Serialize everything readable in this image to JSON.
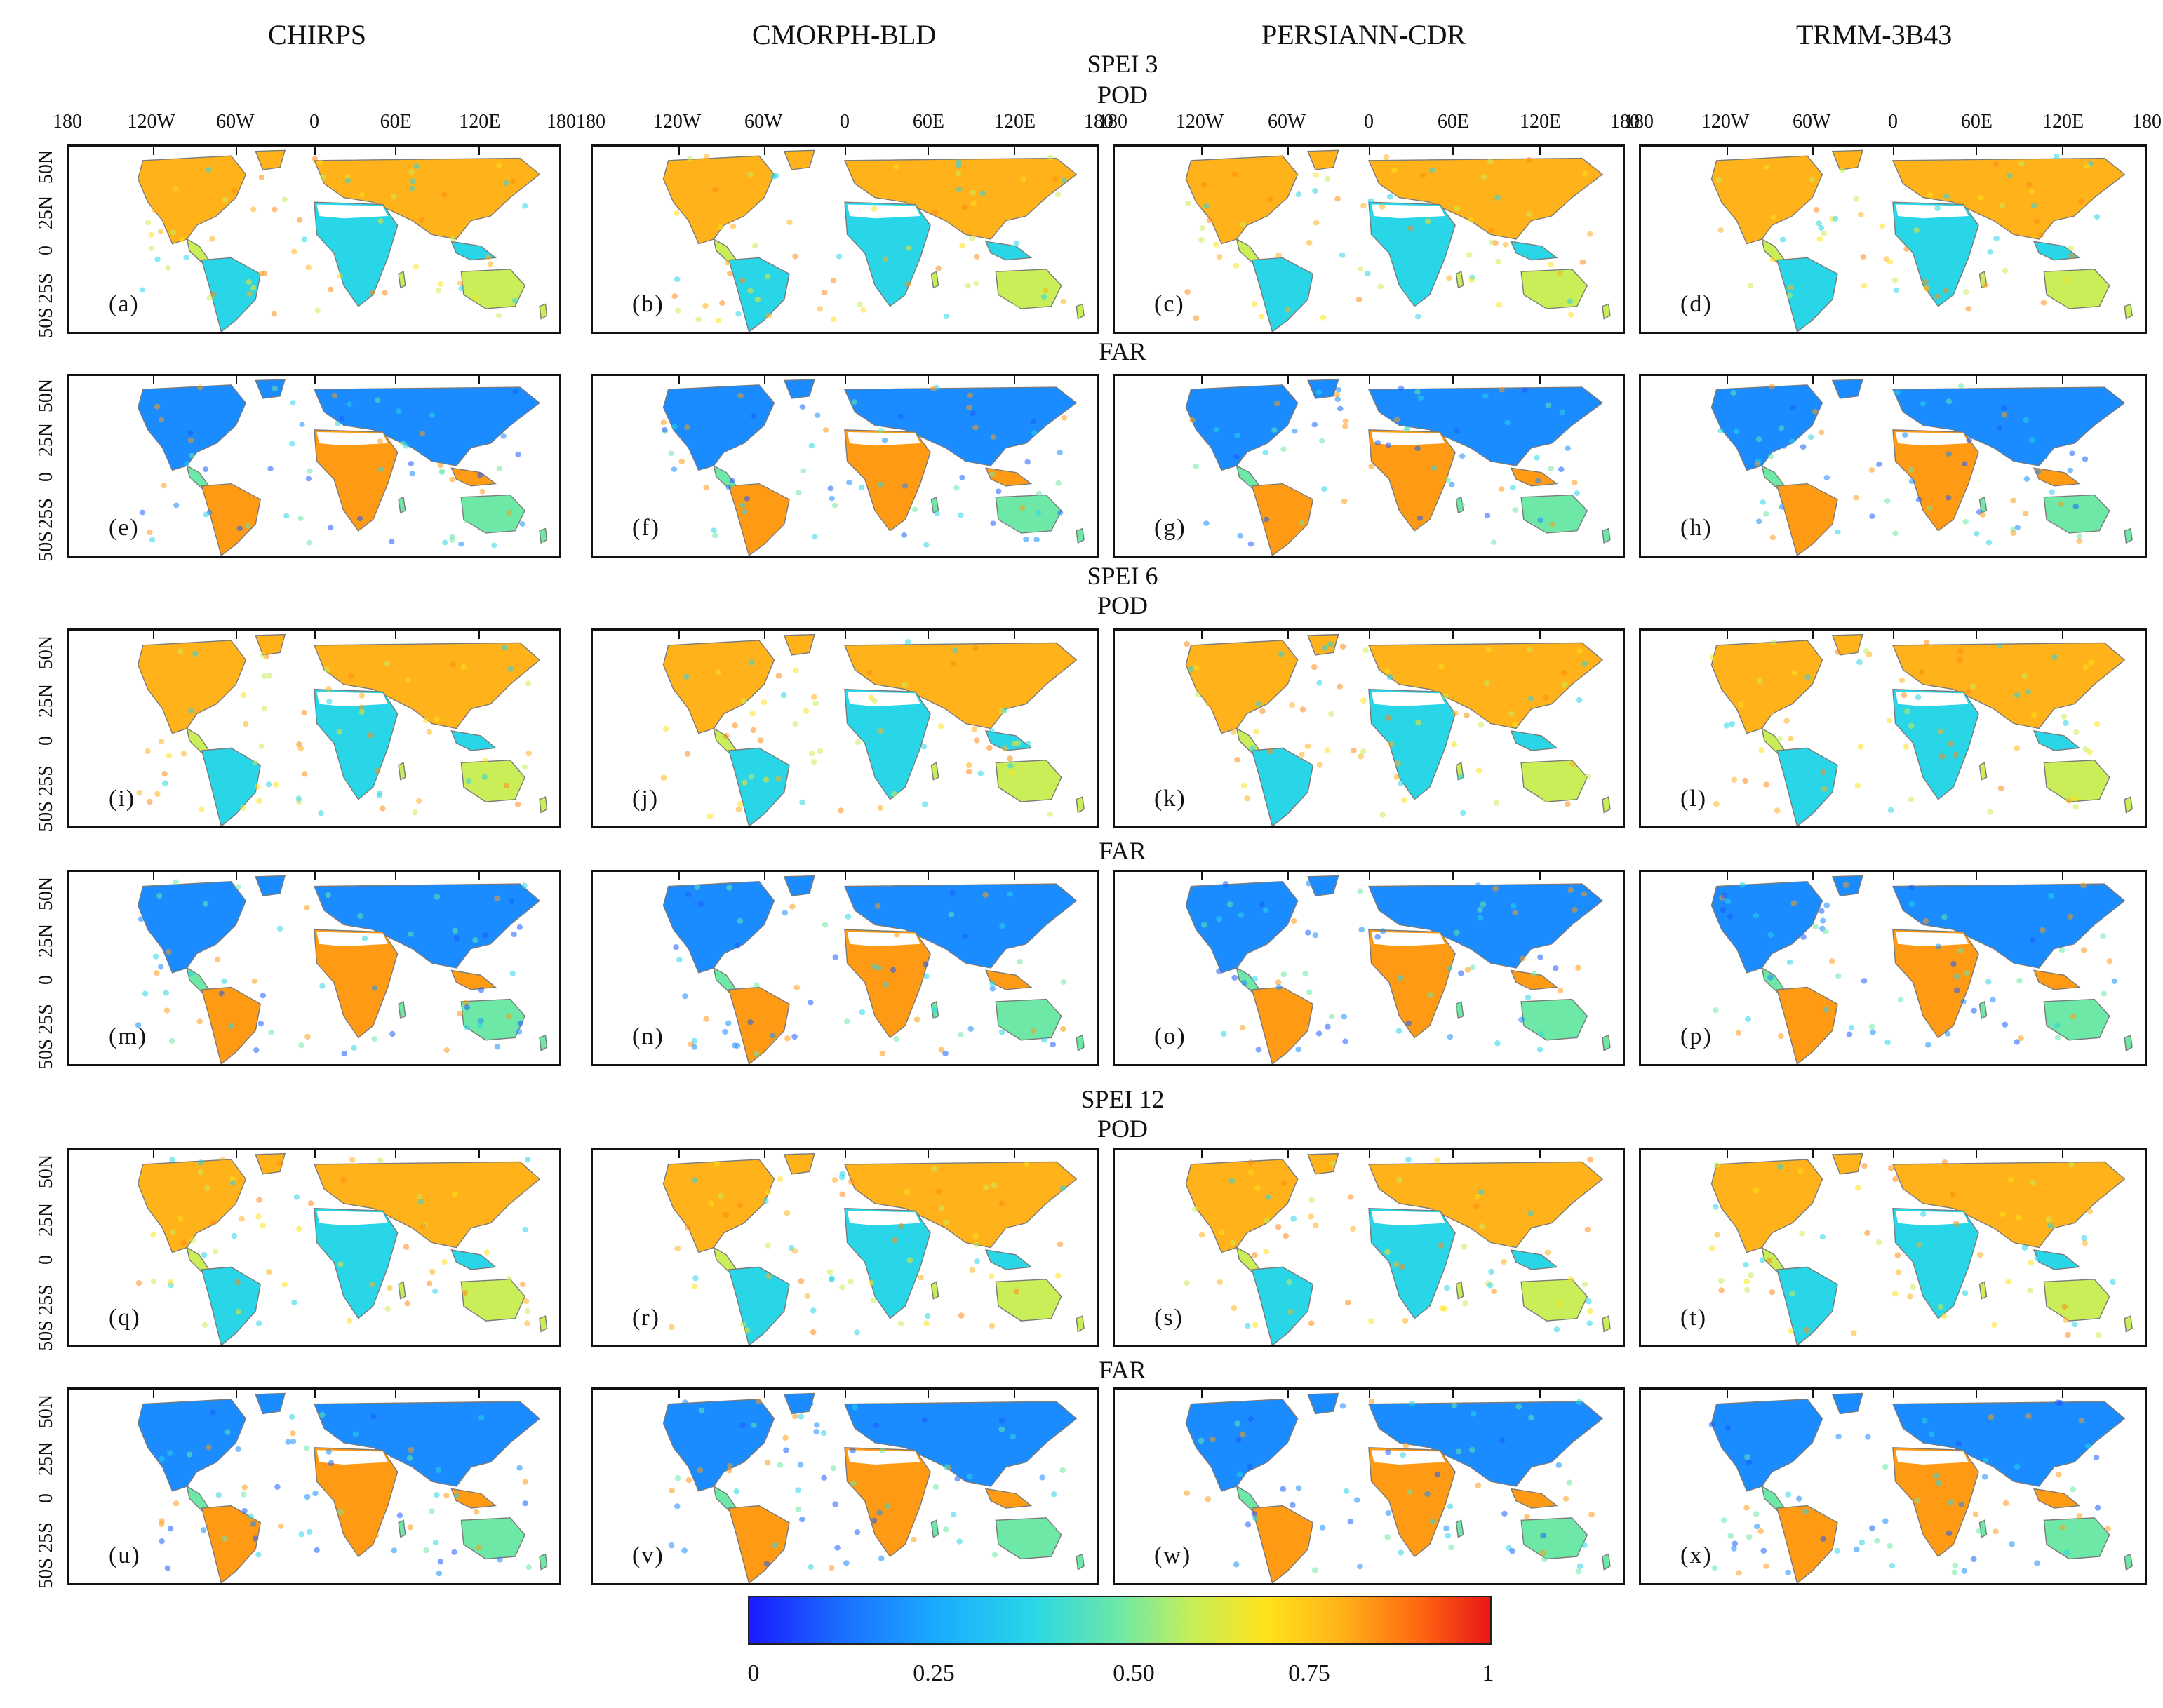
{
  "columns": [
    "CHIRPS",
    "CMORPH-BLD",
    "PERSIANN-CDR",
    "TRMM-3B43"
  ],
  "sections": [
    {
      "title": "SPEI 3",
      "pod": "POD",
      "far": "FAR"
    },
    {
      "title": "SPEI 6",
      "pod": "POD",
      "far": "FAR"
    },
    {
      "title": "SPEI 12",
      "pod": "POD",
      "far": "FAR"
    }
  ],
  "longitude_labels": [
    "180",
    "120W",
    "60W",
    "0",
    "60E",
    "120E",
    "180"
  ],
  "latitude_labels": [
    "50N",
    "25N",
    "0",
    "25S",
    "50S"
  ],
  "panel_labels": [
    "(a)",
    "(b)",
    "(c)",
    "(d)",
    "(e)",
    "(f)",
    "(g)",
    "(h)",
    "(i)",
    "(j)",
    "(k)",
    "(l)",
    "(m)",
    "(n)",
    "(o)",
    "(p)",
    "(q)",
    "(r)",
    "(s)",
    "(t)",
    "(u)",
    "(v)",
    "(w)",
    "(x)"
  ],
  "colorbar": {
    "ticks": [
      "0",
      "0.25",
      "0.50",
      "0.75",
      "1"
    ],
    "colors": {
      "low": "#1a1aff",
      "mid": "#6ee8a6",
      "high": "#e81616"
    }
  },
  "panel_metric": [
    "POD",
    "FAR",
    "POD",
    "FAR",
    "POD",
    "FAR"
  ]
}
